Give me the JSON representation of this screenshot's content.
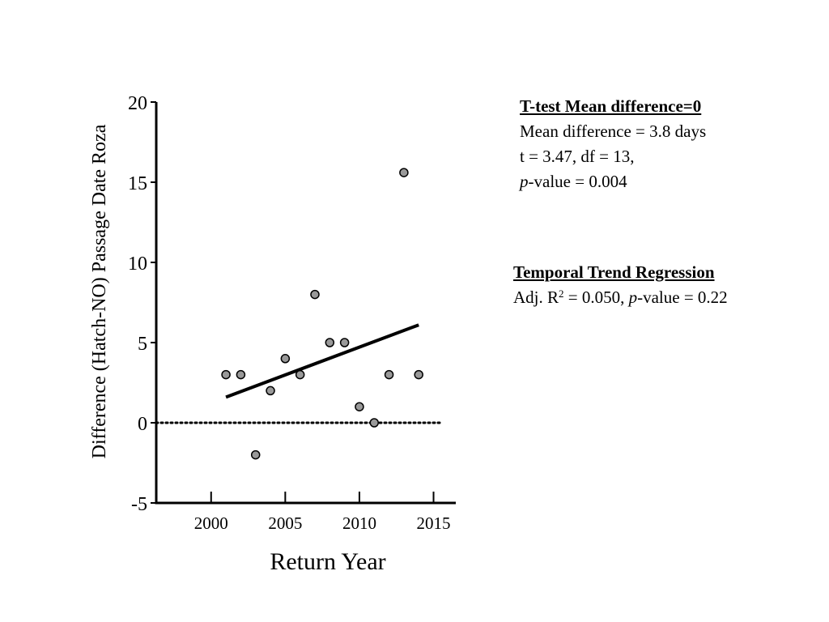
{
  "chart_data": {
    "type": "scatter",
    "xlabel": "Return Year",
    "ylabel": "Difference (Hatch-NO) Passage Date Roza",
    "xlim": [
      1996.3,
      2016.5
    ],
    "ylim": [
      -5,
      20
    ],
    "xticks": [
      2000,
      2005,
      2010,
      2015
    ],
    "yticks": [
      -5,
      0,
      5,
      10,
      15,
      20
    ],
    "grid": false,
    "series": [
      {
        "x": [
          2001,
          2002,
          2003,
          2004,
          2005,
          2006,
          2007,
          2008,
          2009,
          2010,
          2011,
          2012,
          2013,
          2014
        ],
        "y": [
          3,
          3,
          -2,
          2,
          4,
          3,
          8,
          5,
          5,
          1,
          0,
          3,
          15.6,
          3
        ],
        "marker_color": "#999999"
      }
    ],
    "trend_line": {
      "x": [
        2001,
        2014
      ],
      "y": [
        1.6,
        6.1
      ],
      "style": "solid"
    },
    "reference_line": {
      "y": 0,
      "x": [
        1996.3,
        2015.5
      ],
      "style": "dotted"
    }
  },
  "annotations": {
    "ttest": {
      "heading": "T-test Mean difference=0",
      "line1": "Mean difference = 3.8 days",
      "line2": "t = 3.47,  df = 13,",
      "line3_italic": "p",
      "line3_rest": "-value = 0.004"
    },
    "regression": {
      "heading": "Temporal Trend Regression",
      "prefix": "Adj. R",
      "superscript": "2",
      "mid": " = 0.050, ",
      "italic": "p",
      "rest": "-value = 0.22"
    }
  }
}
